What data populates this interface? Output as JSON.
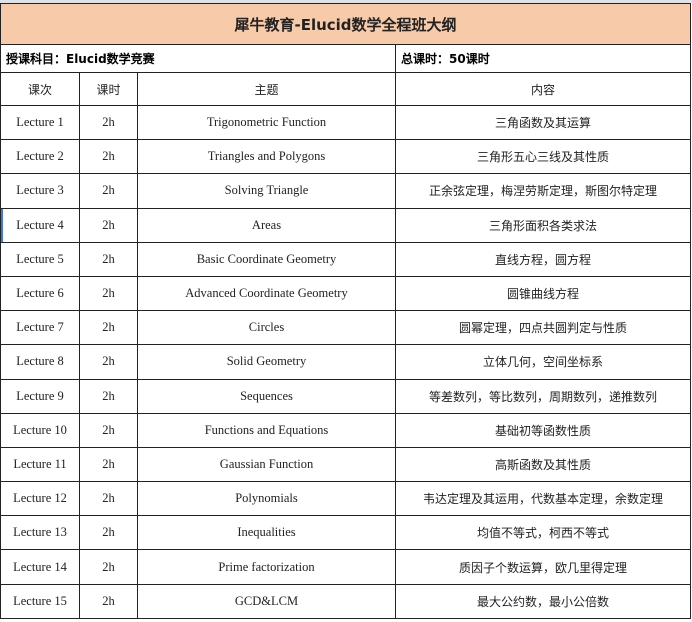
{
  "title": "犀牛教育-Elucid数学全程班大纲",
  "subject": "授课科目：Elucid数学竞赛",
  "total_hours": "总课时：50课时",
  "headers": [
    "课次",
    "课时",
    "主题",
    "内容"
  ],
  "rows": [
    {
      "lecture": "Lecture 1",
      "hours": "2h",
      "topic": "Trigonometric Function",
      "content": "三角函数及其运算"
    },
    {
      "lecture": "Lecture 2",
      "hours": "2h",
      "topic": "Triangles and Polygons",
      "content": "三角形五心三线及其性质"
    },
    {
      "lecture": "Lecture 3",
      "hours": "2h",
      "topic": "Solving Triangle",
      "content": "正余弦定理，梅涅劳斯定理，斯图尔特定理"
    },
    {
      "lecture": "Lecture 4",
      "hours": "2h",
      "topic": "Areas",
      "content": "三角形面积各类求法"
    },
    {
      "lecture": "Lecture 5",
      "hours": "2h",
      "topic": "Basic Coordinate Geometry",
      "content": "直线方程，圆方程"
    },
    {
      "lecture": "Lecture 6",
      "hours": "2h",
      "topic": "Advanced Coordinate Geometry",
      "content": "圆锥曲线方程"
    },
    {
      "lecture": "Lecture 7",
      "hours": "2h",
      "topic": "Circles",
      "content": "圆幂定理，四点共圆判定与性质"
    },
    {
      "lecture": "Lecture 8",
      "hours": "2h",
      "topic": "Solid Geometry",
      "content": "立体几何，空间坐标系"
    },
    {
      "lecture": "Lecture 9",
      "hours": "2h",
      "topic": "Sequences",
      "content": "等差数列，等比数列，周期数列，递推数列"
    },
    {
      "lecture": "Lecture 10",
      "hours": "2h",
      "topic": "Functions and Equations",
      "content": "基础初等函数性质"
    },
    {
      "lecture": "Lecture 11",
      "hours": "2h",
      "topic": "Gaussian Function",
      "content": "高斯函数及其性质"
    },
    {
      "lecture": "Lecture 12",
      "hours": "2h",
      "topic": "Polynomials",
      "content": "韦达定理及其运用，代数基本定理，余数定理"
    },
    {
      "lecture": "Lecture 13",
      "hours": "2h",
      "topic": "Inequalities",
      "content": "均值不等式，柯西不等式"
    },
    {
      "lecture": "Lecture 14",
      "hours": "2h",
      "topic": "Prime factorization",
      "content": "质因子个数运算，欧几里得定理"
    },
    {
      "lecture": "Lecture 15",
      "hours": "2h",
      "topic": "GCD&LCM",
      "content": "最大公约数，最小公倍数"
    }
  ],
  "colors": {
    "title_bg": "#f7caa9",
    "selection": "#3b7be0"
  }
}
